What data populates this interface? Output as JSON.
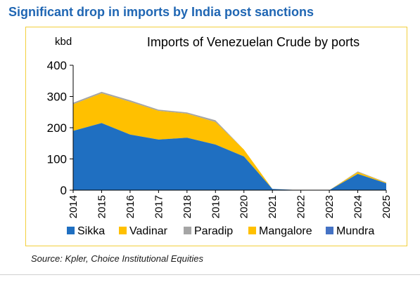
{
  "page": {
    "heading": "Significant drop in imports by India post sanctions",
    "source": "Source: Kpler, Choice Institutional Equities"
  },
  "chart_data": {
    "type": "area",
    "stacked": true,
    "title": "Imports of Venezuelan Crude by ports",
    "ylabel": "kbd",
    "xlabel": "",
    "ylim": [
      0,
      400
    ],
    "yticks": [
      0,
      100,
      200,
      300,
      400
    ],
    "grid": false,
    "legend": "bottom",
    "categories": [
      "2014",
      "2015",
      "2016",
      "2017",
      "2018",
      "2019",
      "2020",
      "2021",
      "2022",
      "2023",
      "2024",
      "2025"
    ],
    "series": [
      {
        "name": "Sikka",
        "color": "#1f6fc1",
        "values": [
          190,
          215,
          178,
          162,
          168,
          146,
          108,
          4,
          0,
          0,
          52,
          22
        ]
      },
      {
        "name": "Vadinar",
        "color": "#ffc000",
        "values": [
          85,
          95,
          105,
          92,
          77,
          72,
          22,
          0,
          0,
          0,
          6,
          2
        ]
      },
      {
        "name": "Paradip",
        "color": "#a5a5a5",
        "values": [
          5,
          5,
          5,
          4,
          4,
          6,
          0,
          0,
          0,
          0,
          2,
          1
        ]
      },
      {
        "name": "Mangalore",
        "color": "#ffc000",
        "values": [
          0,
          0,
          0,
          0,
          0,
          0,
          0,
          0,
          0,
          0,
          0,
          0
        ]
      },
      {
        "name": "Mundra",
        "color": "#4472c4",
        "values": [
          0,
          0,
          0,
          0,
          0,
          0,
          0,
          0,
          0,
          0,
          0,
          0
        ]
      }
    ]
  }
}
